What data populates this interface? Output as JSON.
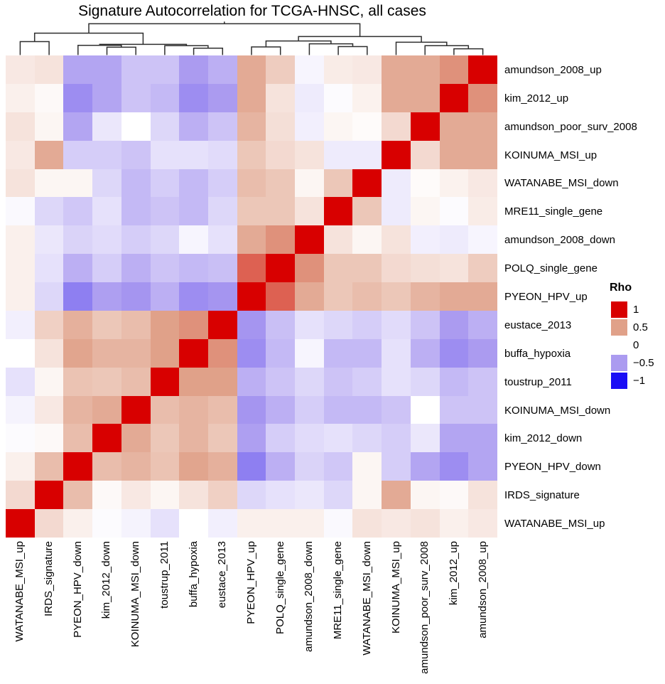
{
  "chart_data": {
    "type": "heatmap",
    "title": "Signature Autocorrelation for TCGA-HNSC, all cases",
    "legend_title": "Rho",
    "legend_entries": [
      {
        "label": "1",
        "value": 1
      },
      {
        "label": "0.5",
        "value": 0.5
      },
      {
        "label": "0",
        "value": 0
      },
      {
        "label": "−0.5",
        "value": -0.5
      },
      {
        "label": "−1",
        "value": -1
      }
    ],
    "colormap_stops": [
      [
        -1.0,
        "#1A0DF5"
      ],
      [
        -0.5,
        "#AB9BF0"
      ],
      [
        0.0,
        "#FFFFFF"
      ],
      [
        0.5,
        "#E0A189"
      ],
      [
        1.0,
        "#D80000"
      ]
    ],
    "row_labels": [
      "amundson_2008_up",
      "kim_2012_up",
      "amundson_poor_surv_2008",
      "KOINUMA_MSI_up",
      "WATANABE_MSI_down",
      "MRE11_single_gene",
      "amundson_2008_down",
      "POLQ_single_gene",
      "PYEON_HPV_up",
      "eustace_2013",
      "buffa_hypoxia",
      "toustrup_2011",
      "KOINUMA_MSI_down",
      "kim_2012_down",
      "PYEON_HPV_down",
      "IRDS_signature",
      "WATANABE_MSI_up"
    ],
    "col_labels": [
      "WATANABE_MSI_up",
      "IRDS_signature",
      "PYEON_HPV_down",
      "kim_2012_down",
      "KOINUMA_MSI_down",
      "toustrup_2011",
      "buffa_hypoxia",
      "eustace_2013",
      "PYEON_HPV_up",
      "POLQ_single_gene",
      "amundson_2008_down",
      "MRE11_single_gene",
      "WATANABE_MSI_down",
      "KOINUMA_MSI_up",
      "amundson_poor_surv_2008",
      "kim_2012_up",
      "amundson_2008_up"
    ],
    "values": [
      [
        0.12,
        0.15,
        -0.45,
        -0.45,
        -0.3,
        -0.3,
        -0.5,
        -0.4,
        0.45,
        0.27,
        -0.05,
        0.1,
        0.12,
        0.45,
        0.45,
        0.55,
        1.0
      ],
      [
        0.08,
        0.03,
        -0.55,
        -0.45,
        -0.3,
        -0.35,
        -0.55,
        -0.5,
        0.45,
        0.15,
        -0.1,
        -0.02,
        0.07,
        0.45,
        0.45,
        1.0,
        0.55
      ],
      [
        0.15,
        0.05,
        -0.45,
        -0.12,
        0.0,
        -0.2,
        -0.4,
        -0.3,
        0.4,
        0.17,
        -0.08,
        0.05,
        0.02,
        0.2,
        1.0,
        0.45,
        0.45
      ],
      [
        0.12,
        0.45,
        -0.25,
        -0.25,
        -0.3,
        -0.15,
        -0.15,
        -0.18,
        0.3,
        0.2,
        0.15,
        -0.1,
        -0.1,
        1.0,
        0.2,
        0.45,
        0.45
      ],
      [
        0.15,
        0.05,
        0.05,
        -0.2,
        -0.35,
        -0.25,
        -0.35,
        -0.25,
        0.35,
        0.3,
        0.05,
        0.3,
        1.0,
        -0.1,
        0.02,
        0.07,
        0.12
      ],
      [
        -0.03,
        -0.2,
        -0.28,
        -0.15,
        -0.35,
        -0.3,
        -0.35,
        -0.2,
        0.3,
        0.3,
        0.15,
        1.0,
        0.3,
        -0.1,
        0.05,
        -0.02,
        0.1
      ],
      [
        0.08,
        -0.12,
        -0.22,
        -0.18,
        -0.25,
        -0.2,
        -0.05,
        -0.15,
        0.45,
        0.55,
        1.0,
        0.15,
        0.05,
        0.15,
        -0.08,
        -0.1,
        -0.05
      ],
      [
        0.08,
        -0.15,
        -0.4,
        -0.25,
        -0.4,
        -0.3,
        -0.35,
        -0.32,
        0.7,
        1.0,
        0.55,
        0.3,
        0.3,
        0.2,
        0.17,
        0.15,
        0.27
      ],
      [
        0.08,
        -0.2,
        -0.6,
        -0.48,
        -0.52,
        -0.4,
        -0.55,
        -0.52,
        1.0,
        0.7,
        0.45,
        0.3,
        0.35,
        0.3,
        0.4,
        0.45,
        0.45
      ],
      [
        -0.08,
        0.25,
        0.42,
        0.3,
        0.35,
        0.5,
        0.55,
        1.0,
        -0.52,
        -0.32,
        -0.15,
        -0.2,
        -0.25,
        -0.18,
        -0.3,
        -0.5,
        -0.4
      ],
      [
        0.0,
        0.15,
        0.48,
        0.4,
        0.4,
        0.5,
        1.0,
        0.55,
        -0.55,
        -0.35,
        -0.05,
        -0.35,
        -0.35,
        -0.15,
        -0.4,
        -0.55,
        -0.5
      ],
      [
        -0.15,
        0.05,
        0.32,
        0.3,
        0.35,
        1.0,
        0.5,
        0.5,
        -0.4,
        -0.3,
        -0.2,
        -0.3,
        -0.25,
        -0.15,
        -0.2,
        -0.35,
        -0.3
      ],
      [
        -0.06,
        0.12,
        0.4,
        0.45,
        1.0,
        0.35,
        0.4,
        0.35,
        -0.52,
        -0.4,
        -0.25,
        -0.35,
        -0.35,
        -0.3,
        0.0,
        -0.3,
        -0.3
      ],
      [
        -0.02,
        0.03,
        0.35,
        1.0,
        0.45,
        0.3,
        0.4,
        0.3,
        -0.48,
        -0.25,
        -0.18,
        -0.15,
        -0.2,
        -0.25,
        -0.12,
        -0.45,
        -0.45
      ],
      [
        0.08,
        0.35,
        1.0,
        0.35,
        0.4,
        0.32,
        0.48,
        0.42,
        -0.6,
        -0.4,
        -0.22,
        -0.28,
        0.05,
        -0.25,
        -0.45,
        -0.55,
        -0.45
      ],
      [
        0.2,
        1.0,
        0.35,
        0.03,
        0.12,
        0.05,
        0.15,
        0.25,
        -0.2,
        -0.15,
        -0.12,
        -0.2,
        0.05,
        0.45,
        0.05,
        0.03,
        0.15
      ],
      [
        1.0,
        0.2,
        0.08,
        -0.02,
        -0.06,
        -0.15,
        0.0,
        -0.08,
        0.08,
        0.08,
        0.08,
        -0.03,
        0.15,
        0.12,
        0.15,
        0.08,
        0.12
      ]
    ],
    "column_dendrogram": {
      "h": 1.0,
      "children": [
        {
          "h": 0.7,
          "children": [
            {
              "h": 0.43,
              "children": [
                {
                  "leaf": 1
                },
                {
                  "leaf": 2
                }
              ]
            },
            {
              "h": 0.34,
              "children": [
                {
                  "h": 0.31,
                  "children": [
                    {
                      "leaf": 3
                    },
                    {
                      "h": 0.25,
                      "children": [
                        {
                          "leaf": 4
                        },
                        {
                          "leaf": 5
                        }
                      ]
                    }
                  ]
                },
                {
                  "h": 0.3,
                  "children": [
                    {
                      "leaf": 6
                    },
                    {
                      "h": 0.22,
                      "children": [
                        {
                          "leaf": 7
                        },
                        {
                          "leaf": 8
                        }
                      ]
                    }
                  ]
                }
              ]
            }
          ]
        },
        {
          "h": 0.59,
          "children": [
            {
              "h": 0.45,
              "children": [
                {
                  "h": 0.26,
                  "children": [
                    {
                      "leaf": 9
                    },
                    {
                      "leaf": 10
                    }
                  ]
                },
                {
                  "h": 0.36,
                  "children": [
                    {
                      "leaf": 11
                    },
                    {
                      "h": 0.27,
                      "children": [
                        {
                          "leaf": 12
                        },
                        {
                          "leaf": 13
                        }
                      ]
                    }
                  ]
                }
              ]
            },
            {
              "h": 0.41,
              "children": [
                {
                  "leaf": 14
                },
                {
                  "h": 0.3,
                  "children": [
                    {
                      "leaf": 15
                    },
                    {
                      "h": 0.2,
                      "children": [
                        {
                          "leaf": 16
                        },
                        {
                          "leaf": 17
                        }
                      ]
                    }
                  ]
                }
              ]
            }
          ]
        }
      ]
    }
  }
}
